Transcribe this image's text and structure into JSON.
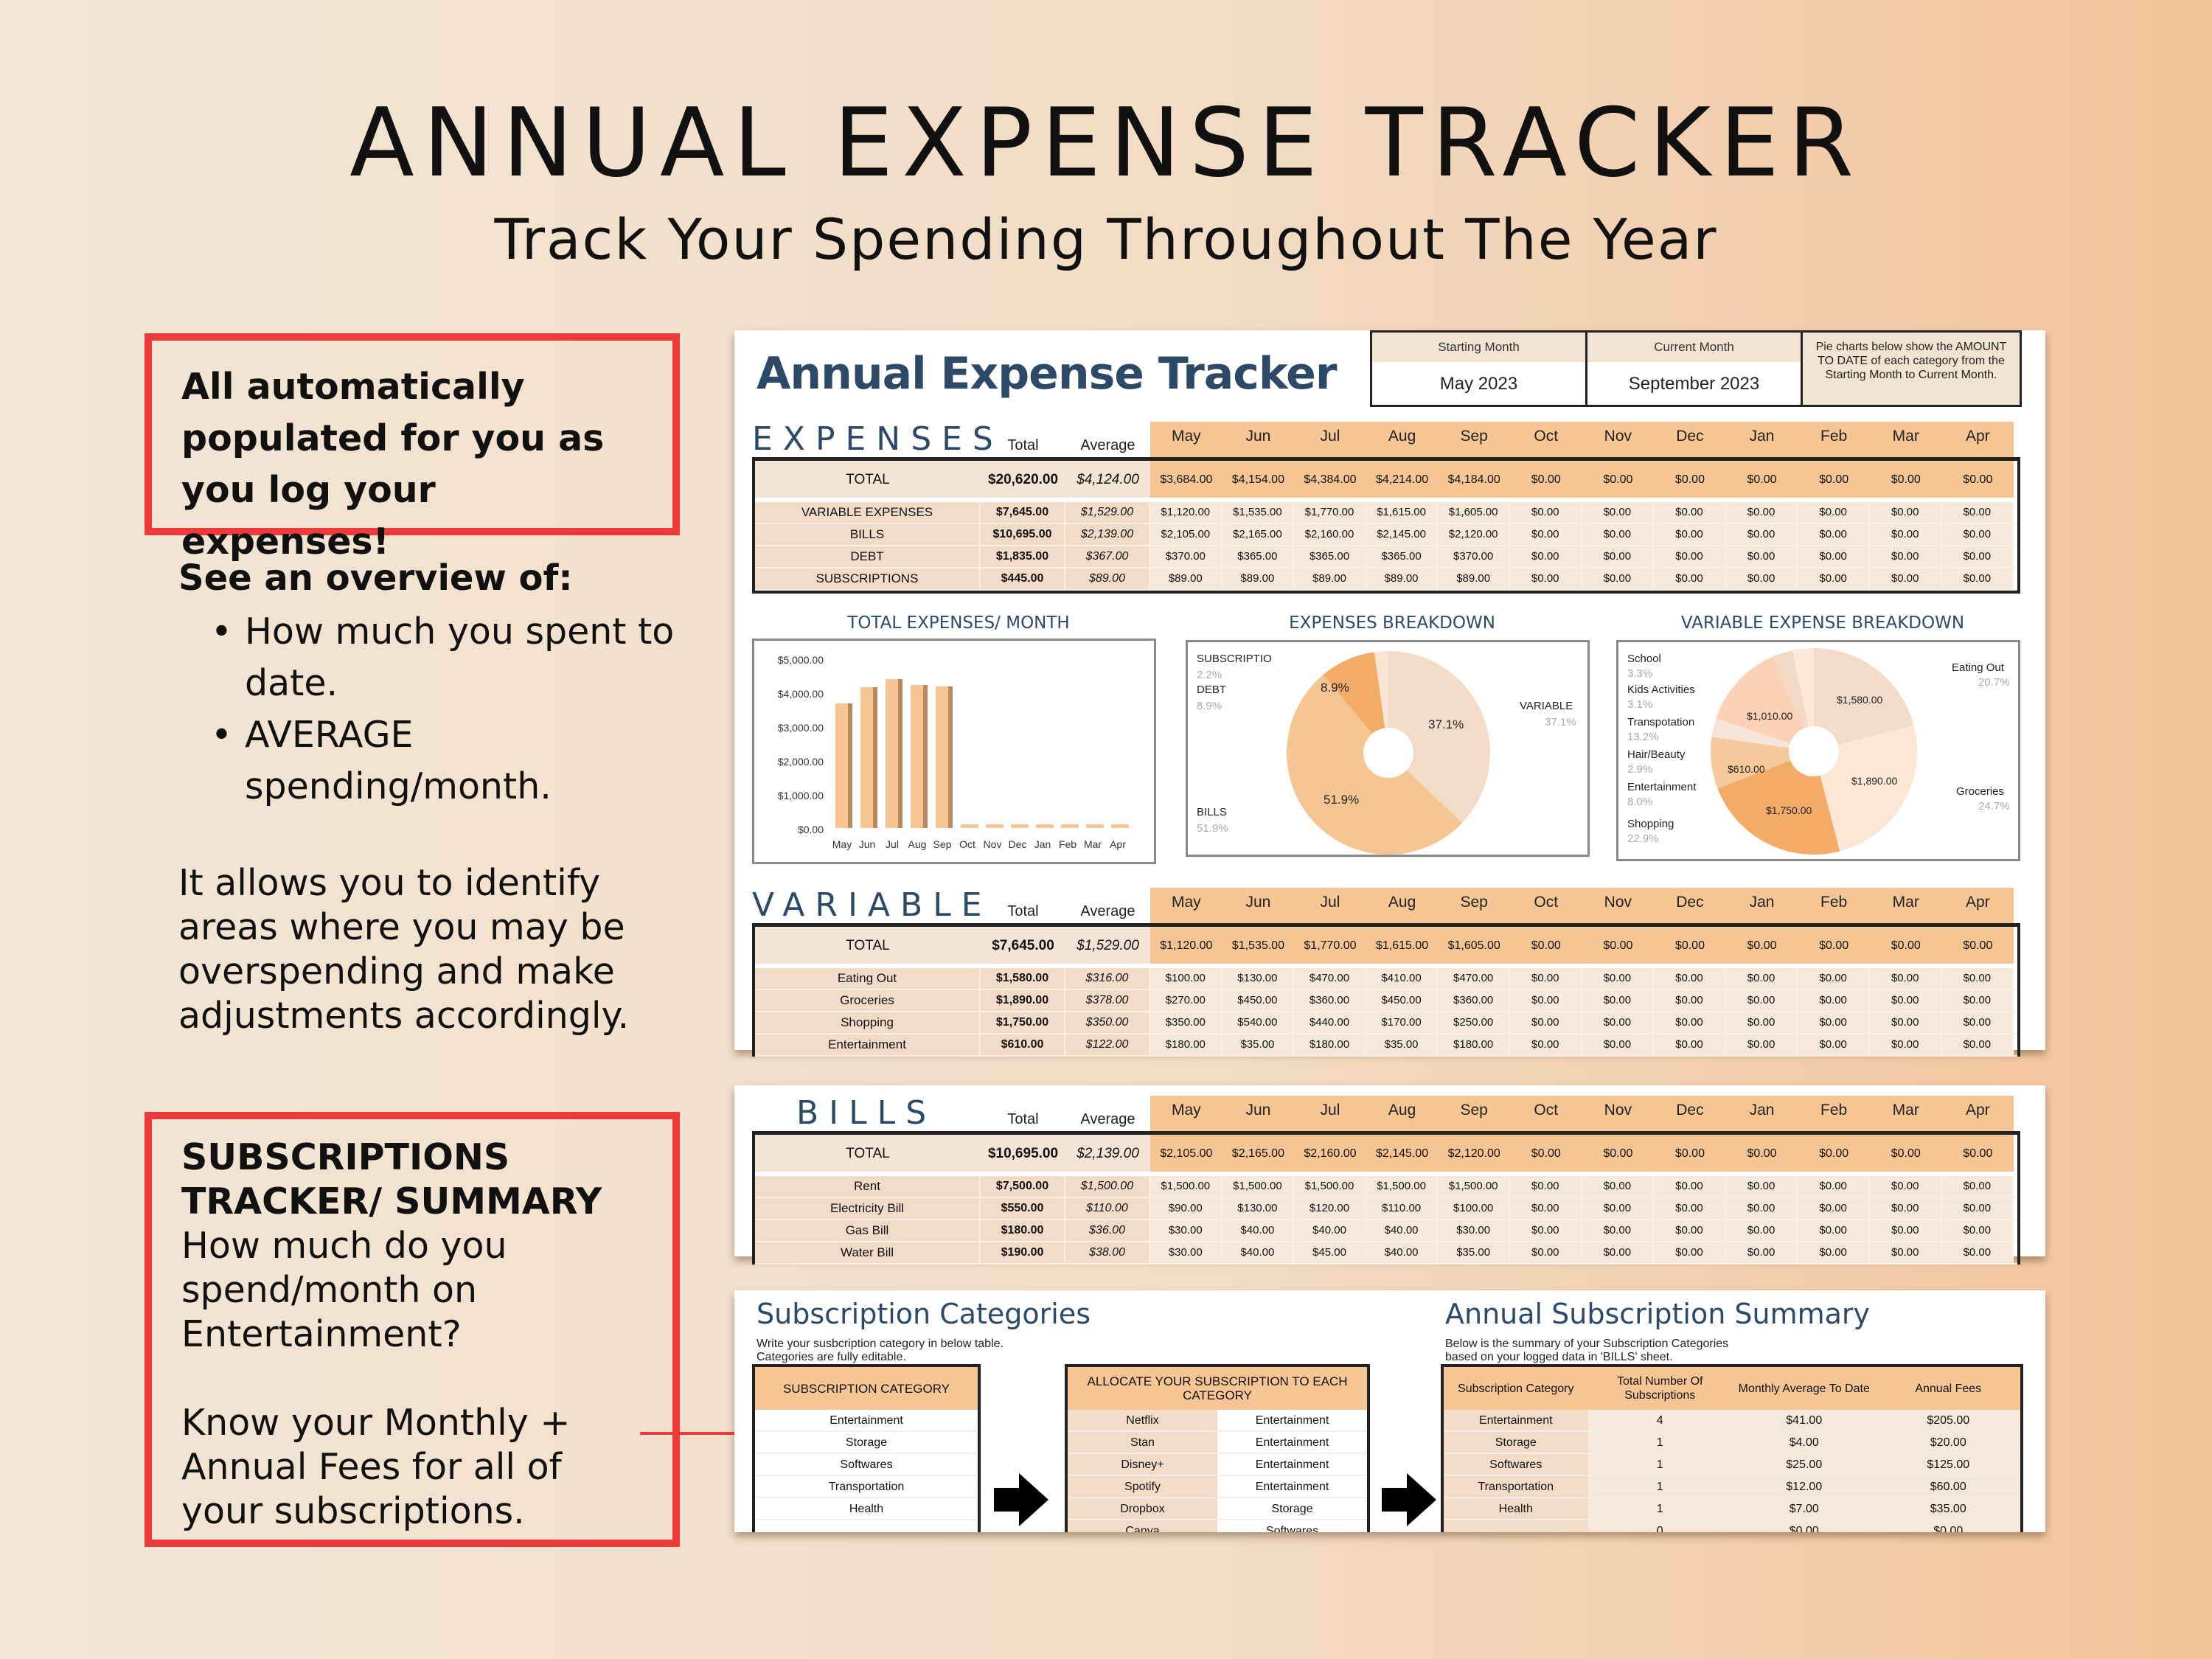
{
  "page": {
    "title": "ANNUAL EXPENSE TRACKER",
    "subtitle": "Track Your Spending Throughout The Year"
  },
  "left": {
    "callout1": "All automatically populated for you as you log your expenses!",
    "overview_heading": "See an overview of:",
    "overview_items": [
      "How much you spent to date.",
      "AVERAGE spending/month."
    ],
    "paragraph": "It allows you to identify areas where you may be overspending and make adjustments accordingly.",
    "callout2_heading": "SUBSCRIPTIONS TRACKER/ SUMMARY",
    "callout2_q": "How much do you spend/month on Entertainment?",
    "callout2_body": "Know your Monthly + Annual Fees for all of your subscriptions."
  },
  "sheet": {
    "app_title": "Annual Expense Tracker",
    "starting_month_label": "Starting Month",
    "starting_month_value": "May  2023",
    "current_month_label": "Current Month",
    "current_month_value": "September  2023",
    "note": "Pie charts below show the AMOUNT TO DATE of each category from the Starting Month to Current Month.",
    "col_total": "Total",
    "col_average": "Average",
    "months": [
      "May",
      "Jun",
      "Jul",
      "Aug",
      "Sep",
      "Oct",
      "Nov",
      "Dec",
      "Jan",
      "Feb",
      "Mar",
      "Apr"
    ],
    "expenses": {
      "name": "EXPENSES",
      "total": {
        "label": "TOTAL",
        "total": "$20,620.00",
        "avg": "$4,124.00",
        "m": [
          "$3,684.00",
          "$4,154.00",
          "$4,384.00",
          "$4,214.00",
          "$4,184.00",
          "$0.00",
          "$0.00",
          "$0.00",
          "$0.00",
          "$0.00",
          "$0.00",
          "$0.00"
        ]
      },
      "rows": [
        {
          "label": "VARIABLE EXPENSES",
          "total": "$7,645.00",
          "avg": "$1,529.00",
          "m": [
            "$1,120.00",
            "$1,535.00",
            "$1,770.00",
            "$1,615.00",
            "$1,605.00",
            "$0.00",
            "$0.00",
            "$0.00",
            "$0.00",
            "$0.00",
            "$0.00",
            "$0.00"
          ]
        },
        {
          "label": "BILLS",
          "total": "$10,695.00",
          "avg": "$2,139.00",
          "m": [
            "$2,105.00",
            "$2,165.00",
            "$2,160.00",
            "$2,145.00",
            "$2,120.00",
            "$0.00",
            "$0.00",
            "$0.00",
            "$0.00",
            "$0.00",
            "$0.00",
            "$0.00"
          ]
        },
        {
          "label": "DEBT",
          "total": "$1,835.00",
          "avg": "$367.00",
          "m": [
            "$370.00",
            "$365.00",
            "$365.00",
            "$365.00",
            "$370.00",
            "$0.00",
            "$0.00",
            "$0.00",
            "$0.00",
            "$0.00",
            "$0.00",
            "$0.00"
          ]
        },
        {
          "label": "SUBSCRIPTIONS",
          "total": "$445.00",
          "avg": "$89.00",
          "m": [
            "$89.00",
            "$89.00",
            "$89.00",
            "$89.00",
            "$89.00",
            "$0.00",
            "$0.00",
            "$0.00",
            "$0.00",
            "$0.00",
            "$0.00",
            "$0.00"
          ]
        }
      ]
    },
    "variable": {
      "name": "VARIABLE",
      "total": {
        "label": "TOTAL",
        "total": "$7,645.00",
        "avg": "$1,529.00",
        "m": [
          "$1,120.00",
          "$1,535.00",
          "$1,770.00",
          "$1,615.00",
          "$1,605.00",
          "$0.00",
          "$0.00",
          "$0.00",
          "$0.00",
          "$0.00",
          "$0.00",
          "$0.00"
        ]
      },
      "rows": [
        {
          "label": "Eating Out",
          "total": "$1,580.00",
          "avg": "$316.00",
          "m": [
            "$100.00",
            "$130.00",
            "$470.00",
            "$410.00",
            "$470.00",
            "$0.00",
            "$0.00",
            "$0.00",
            "$0.00",
            "$0.00",
            "$0.00",
            "$0.00"
          ]
        },
        {
          "label": "Groceries",
          "total": "$1,890.00",
          "avg": "$378.00",
          "m": [
            "$270.00",
            "$450.00",
            "$360.00",
            "$450.00",
            "$360.00",
            "$0.00",
            "$0.00",
            "$0.00",
            "$0.00",
            "$0.00",
            "$0.00",
            "$0.00"
          ]
        },
        {
          "label": "Shopping",
          "total": "$1,750.00",
          "avg": "$350.00",
          "m": [
            "$350.00",
            "$540.00",
            "$440.00",
            "$170.00",
            "$250.00",
            "$0.00",
            "$0.00",
            "$0.00",
            "$0.00",
            "$0.00",
            "$0.00",
            "$0.00"
          ]
        },
        {
          "label": "Entertainment",
          "total": "$610.00",
          "avg": "$122.00",
          "m": [
            "$180.00",
            "$35.00",
            "$180.00",
            "$35.00",
            "$180.00",
            "$0.00",
            "$0.00",
            "$0.00",
            "$0.00",
            "$0.00",
            "$0.00",
            "$0.00"
          ]
        }
      ]
    },
    "bills": {
      "name": "BILLS",
      "total": {
        "label": "TOTAL",
        "total": "$10,695.00",
        "avg": "$2,139.00",
        "m": [
          "$2,105.00",
          "$2,165.00",
          "$2,160.00",
          "$2,145.00",
          "$2,120.00",
          "$0.00",
          "$0.00",
          "$0.00",
          "$0.00",
          "$0.00",
          "$0.00",
          "$0.00"
        ]
      },
      "rows": [
        {
          "label": "Rent",
          "total": "$7,500.00",
          "avg": "$1,500.00",
          "m": [
            "$1,500.00",
            "$1,500.00",
            "$1,500.00",
            "$1,500.00",
            "$1,500.00",
            "$0.00",
            "$0.00",
            "$0.00",
            "$0.00",
            "$0.00",
            "$0.00",
            "$0.00"
          ]
        },
        {
          "label": "Electricity Bill",
          "total": "$550.00",
          "avg": "$110.00",
          "m": [
            "$90.00",
            "$130.00",
            "$120.00",
            "$110.00",
            "$100.00",
            "$0.00",
            "$0.00",
            "$0.00",
            "$0.00",
            "$0.00",
            "$0.00",
            "$0.00"
          ]
        },
        {
          "label": "Gas Bill",
          "total": "$180.00",
          "avg": "$36.00",
          "m": [
            "$30.00",
            "$40.00",
            "$40.00",
            "$40.00",
            "$30.00",
            "$0.00",
            "$0.00",
            "$0.00",
            "$0.00",
            "$0.00",
            "$0.00",
            "$0.00"
          ]
        },
        {
          "label": "Water Bill",
          "total": "$190.00",
          "avg": "$38.00",
          "m": [
            "$30.00",
            "$40.00",
            "$45.00",
            "$40.00",
            "$35.00",
            "$0.00",
            "$0.00",
            "$0.00",
            "$0.00",
            "$0.00",
            "$0.00",
            "$0.00"
          ]
        }
      ]
    }
  },
  "chart_data": [
    {
      "type": "bar",
      "title": "TOTAL EXPENSES/ MONTH",
      "categories": [
        "May",
        "Jun",
        "Jul",
        "Aug",
        "Sep",
        "Oct",
        "Nov",
        "Dec",
        "Jan",
        "Feb",
        "Mar",
        "Apr"
      ],
      "values": [
        3684,
        4154,
        4384,
        4214,
        4184,
        0,
        0,
        0,
        0,
        0,
        0,
        0
      ],
      "yticks": [
        "$5,000.00",
        "$4,000.00",
        "$3,000.00",
        "$2,000.00",
        "$1,000.00",
        "$0.00"
      ],
      "ylim": [
        0,
        5000
      ]
    },
    {
      "type": "pie",
      "title": "EXPENSES BREAKDOWN",
      "labels": [
        "VARIABLE",
        "BILLS",
        "DEBT",
        "SUBSCRIPTIO"
      ],
      "values": [
        37.1,
        51.9,
        8.9,
        2.2
      ],
      "display": [
        "37.1%",
        "51.9%",
        "8.9%",
        "2.2%"
      ],
      "colors": [
        "#f2dcc8",
        "#f6c594",
        "#f2ac68",
        "#f6e4d4"
      ]
    },
    {
      "type": "pie",
      "title": "VARIABLE EXPENSE BREAKDOWN",
      "labels": [
        "Eating Out",
        "Groceries",
        "Shopping",
        "Entertainment",
        "Hair/Beauty",
        "Transpotation",
        "Kids Activities",
        "School"
      ],
      "values": [
        20.7,
        24.7,
        22.9,
        8.0,
        2.9,
        13.2,
        3.1,
        3.3
      ],
      "display_values": [
        "$1,580.00",
        "$1,890.00",
        "$1,750.00",
        "$610.00",
        "",
        "$1,010.00",
        "",
        ""
      ],
      "pct": [
        "20.7%",
        "24.7%",
        "22.9%",
        "8.0%",
        "2.9%",
        "13.2%",
        "3.1%",
        "3.3%"
      ]
    }
  ],
  "subscriptions": {
    "cat_title": "Subscription Categories",
    "cat_desc1": "Write your susbcription category in below table.",
    "cat_desc2": "Categories are fully editable.",
    "cat_header": "SUBSCRIPTION CATEGORY",
    "categories": [
      "Entertainment",
      "Storage",
      "Softwares",
      "Transportation",
      "Health"
    ],
    "alloc_header": "ALLOCATE YOUR SUBSCRIPTION TO EACH CATEGORY",
    "alloc": [
      {
        "name": "Netflix",
        "cat": "Entertainment"
      },
      {
        "name": "Stan",
        "cat": "Entertainment"
      },
      {
        "name": "Disney+",
        "cat": "Entertainment"
      },
      {
        "name": "Spotify",
        "cat": "Entertainment"
      },
      {
        "name": "Dropbox",
        "cat": "Storage"
      },
      {
        "name": "Canva",
        "cat": "Softwares"
      }
    ],
    "summary_title": "Annual Subscription Summary",
    "summary_desc1": "Below is the summary of your Subscription Categories",
    "summary_desc2": "based on your logged data in 'BILLS' sheet.",
    "summary_headers": [
      "Subscription Category",
      "Total Number Of Subscriptions",
      "Monthly Average To Date",
      "Annual Fees"
    ],
    "summary_rows": [
      [
        "Entertainment",
        "4",
        "$41.00",
        "$205.00"
      ],
      [
        "Storage",
        "1",
        "$4.00",
        "$20.00"
      ],
      [
        "Softwares",
        "1",
        "$25.00",
        "$125.00"
      ],
      [
        "Transportation",
        "1",
        "$12.00",
        "$60.00"
      ],
      [
        "Health",
        "1",
        "$7.00",
        "$35.00"
      ],
      [
        "",
        "0",
        "$0.00",
        "$0.00"
      ]
    ]
  }
}
